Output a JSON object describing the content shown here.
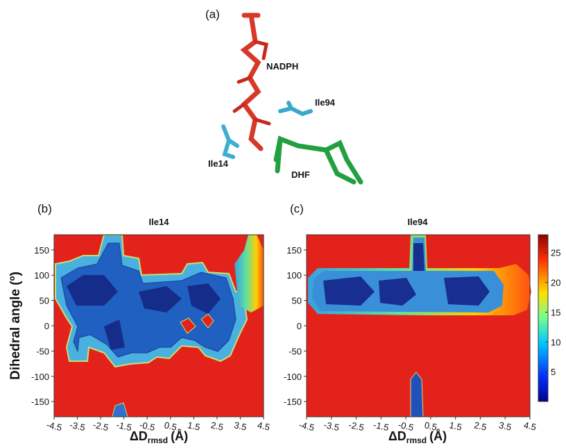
{
  "panel_a": {
    "label": "(a)",
    "molecules": [
      "NADPH",
      "Ile94",
      "Ile14",
      "DHF"
    ]
  },
  "chart_data": [
    {
      "type": "contour",
      "panel": "(b)",
      "title": "Ile14",
      "y_label": "Dihedral angle (º)",
      "x_label": {
        "main": "ΔD",
        "sub": "rmsd",
        "unit": "(Å)"
      },
      "xlim": [
        -4.5,
        4.5
      ],
      "xticks": [
        -4.5,
        -3.5,
        -2.5,
        -1.5,
        -0.5,
        0.5,
        1.5,
        2.5,
        3.5,
        4.5
      ],
      "ylim": [
        -180,
        180
      ],
      "yticks": [
        -150,
        -100,
        -50,
        0,
        50,
        100,
        150
      ],
      "background_color": "#e3231b"
    },
    {
      "type": "contour",
      "panel": "(c)",
      "title": "Ile94",
      "x_label": {
        "main": "ΔD",
        "sub": "rmsd",
        "unit": "(Å)"
      },
      "xlim": [
        -4.5,
        4.5
      ],
      "xticks": [
        -4.5,
        -3.5,
        -2.5,
        -1.5,
        -0.5,
        0.5,
        1.5,
        2.5,
        3.5,
        4.5
      ],
      "ylim": [
        -180,
        180
      ],
      "yticks": [
        -150,
        -100,
        -50,
        0,
        50,
        100,
        150
      ],
      "background_color": "#e3231b",
      "colorbar": {
        "lim": [
          0,
          28
        ],
        "ticks": [
          5,
          10,
          15,
          20,
          25
        ]
      }
    }
  ]
}
